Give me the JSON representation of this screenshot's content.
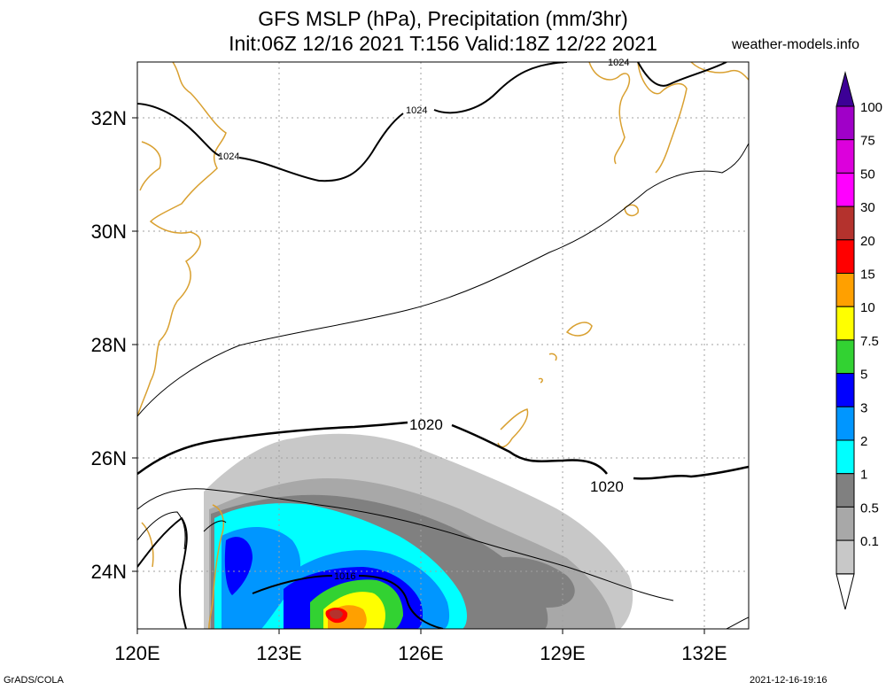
{
  "header": {
    "title_line1": "GFS MSLP (hPa), Precipitation (mm/3hr)",
    "title_line2": "Init:06Z 12/16 2021 T:156 Valid:18Z 12/22 2021",
    "site": "weather-models.info"
  },
  "footer": {
    "left": "GrADS/COLA",
    "right": "2021-12-16-19:16"
  },
  "map": {
    "lon_labels": [
      "120E",
      "123E",
      "126E",
      "129E",
      "132E"
    ],
    "lat_labels": [
      "32N",
      "30N",
      "28N",
      "26N",
      "24N"
    ],
    "isobar_labels": [
      "1024",
      "1024",
      "1024",
      "1020",
      "1020",
      "1016"
    ],
    "colors": {
      "coast": "#d9a030",
      "isobar": "#000000",
      "grid": "#a0a0a0"
    }
  },
  "legend": {
    "labels": [
      "100",
      "75",
      "50",
      "30",
      "20",
      "15",
      "10",
      "7.5",
      "5",
      "3",
      "2",
      "1",
      "0.5",
      "0.1"
    ],
    "colors": [
      "#a000c8",
      "#dc00dc",
      "#ff00ff",
      "#b4322d",
      "#ff0000",
      "#ffa000",
      "#ffff00",
      "#32d232",
      "#0000ff",
      "#0096ff",
      "#00ffff",
      "#808080",
      "#a8a8a8",
      "#c8c8c8"
    ],
    "top_color": "#3c0096"
  }
}
